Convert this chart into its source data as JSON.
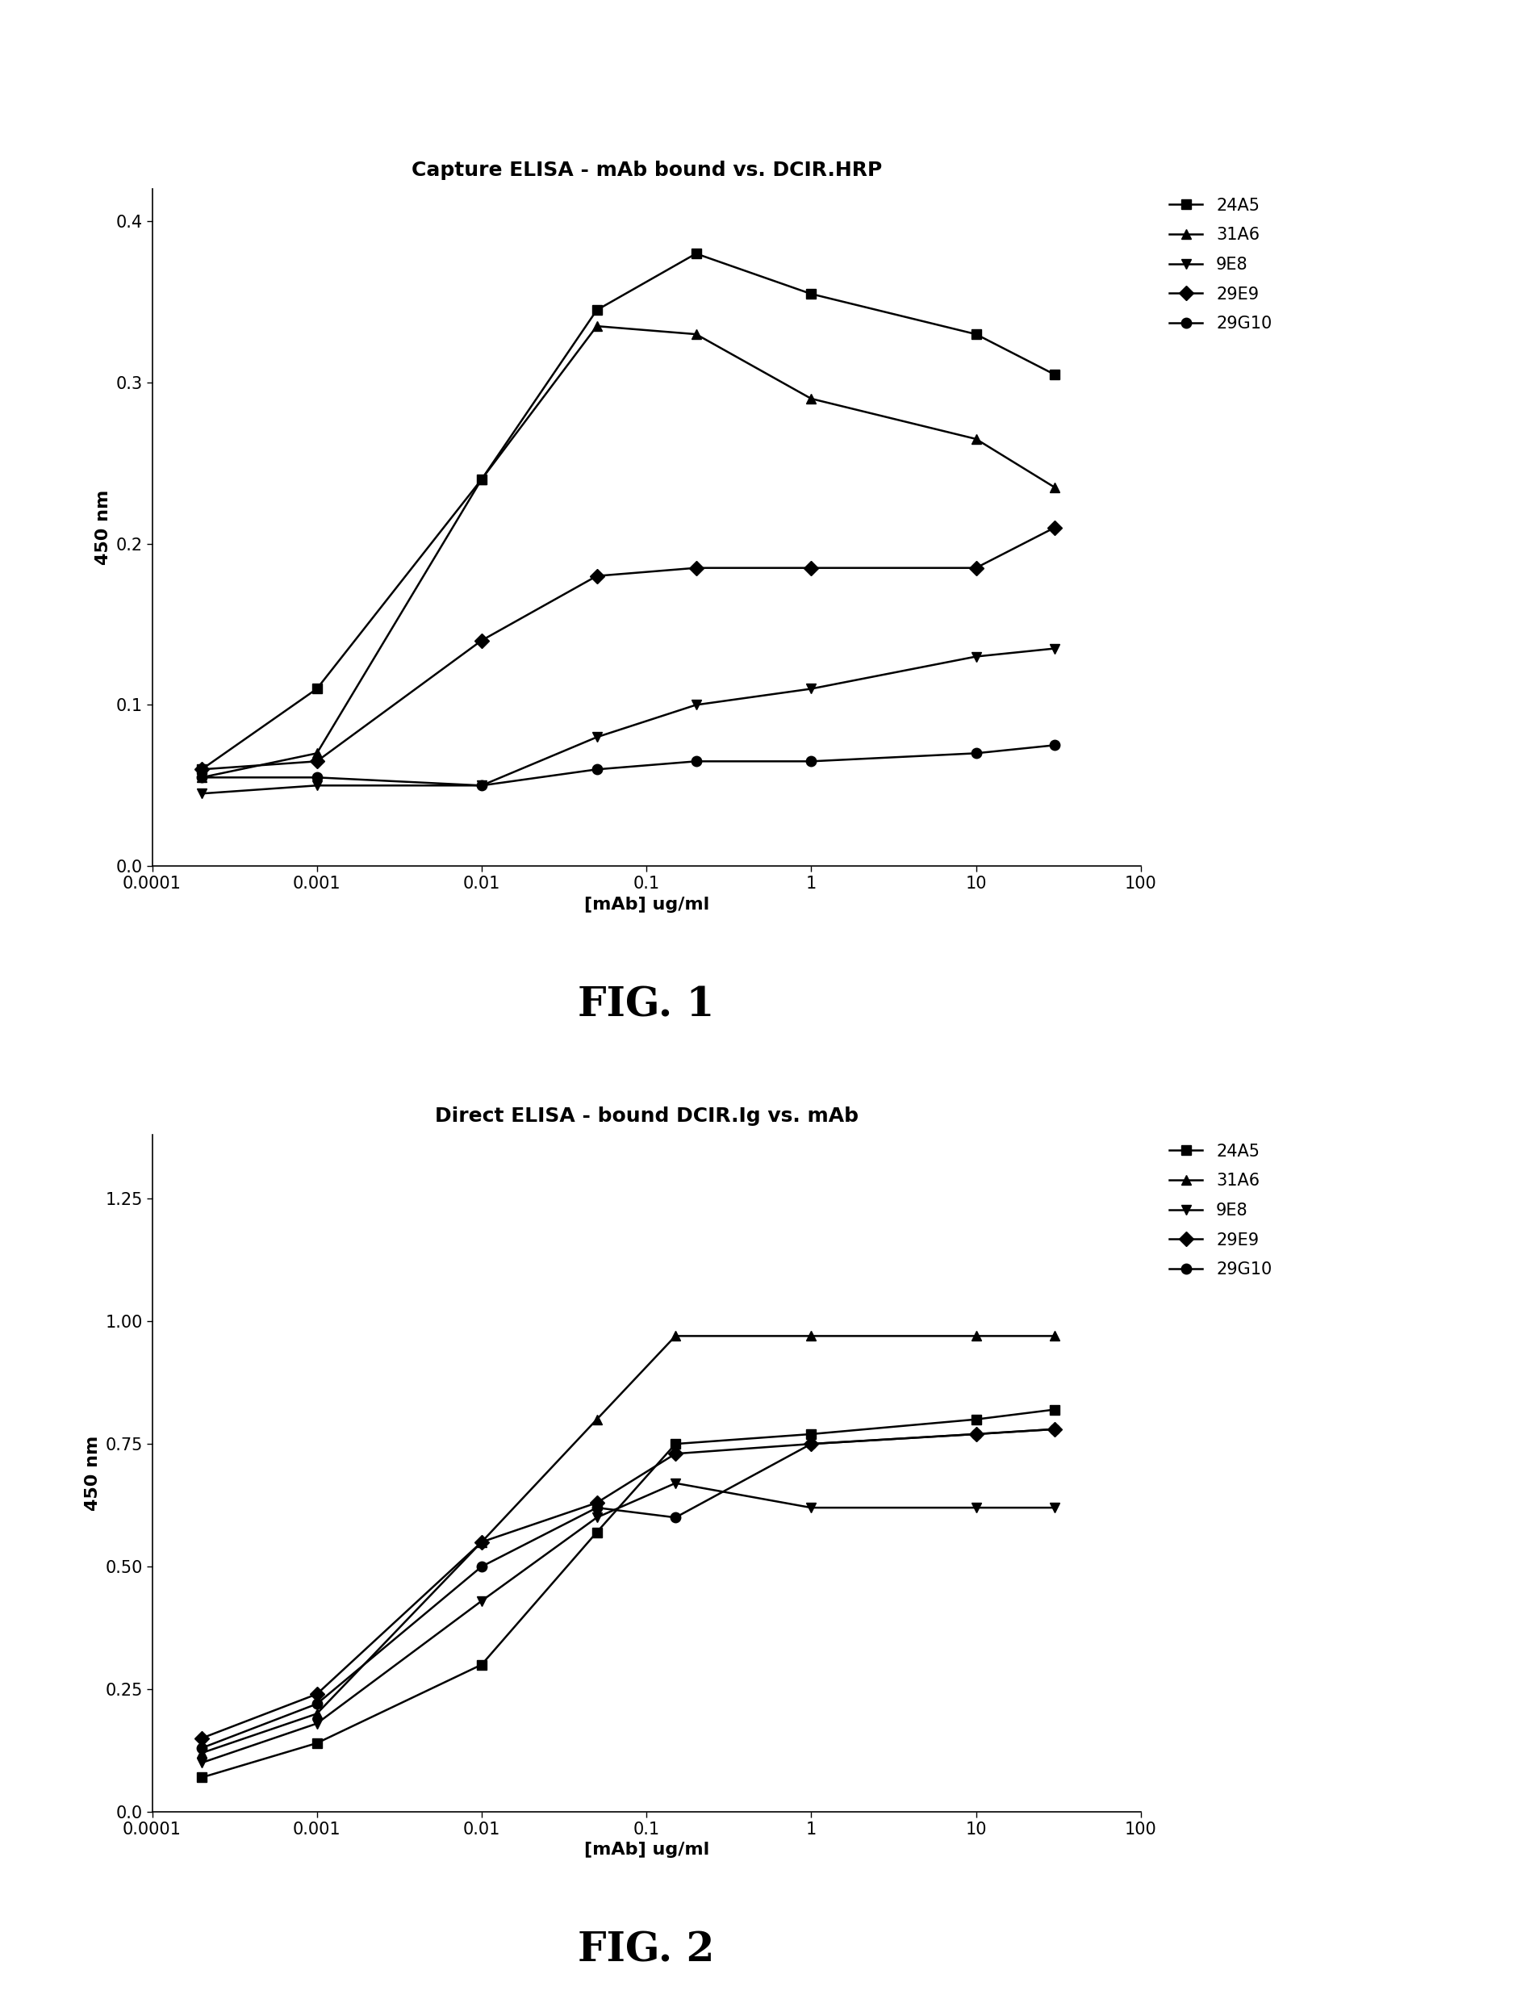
{
  "fig1": {
    "title": "Capture ELISA - mAb bound vs. DCIR.HRP",
    "xlabel": "[mAb] ug/ml",
    "ylabel": "450 nm",
    "ylim": [
      0.0,
      0.42
    ],
    "yticks": [
      0.0,
      0.1,
      0.2,
      0.3,
      0.4
    ],
    "xlim": [
      0.00015,
      70
    ],
    "series": {
      "24A5": {
        "x": [
          0.0002,
          0.001,
          0.01,
          0.05,
          0.2,
          1,
          10,
          30
        ],
        "y": [
          0.06,
          0.11,
          0.24,
          0.345,
          0.38,
          0.355,
          0.33,
          0.305
        ],
        "marker": "s"
      },
      "31A6": {
        "x": [
          0.0002,
          0.001,
          0.01,
          0.05,
          0.2,
          1,
          10,
          30
        ],
        "y": [
          0.055,
          0.07,
          0.24,
          0.335,
          0.33,
          0.29,
          0.265,
          0.235
        ],
        "marker": "^"
      },
      "9E8": {
        "x": [
          0.0002,
          0.001,
          0.01,
          0.05,
          0.2,
          1,
          10,
          30
        ],
        "y": [
          0.045,
          0.05,
          0.05,
          0.08,
          0.1,
          0.11,
          0.13,
          0.135
        ],
        "marker": "v"
      },
      "29E9": {
        "x": [
          0.0002,
          0.001,
          0.01,
          0.05,
          0.2,
          1,
          10,
          30
        ],
        "y": [
          0.06,
          0.065,
          0.14,
          0.18,
          0.185,
          0.185,
          0.185,
          0.21
        ],
        "marker": "D"
      },
      "29G10": {
        "x": [
          0.0002,
          0.001,
          0.01,
          0.05,
          0.2,
          1,
          10,
          30
        ],
        "y": [
          0.055,
          0.055,
          0.05,
          0.06,
          0.065,
          0.065,
          0.07,
          0.075
        ],
        "marker": "o"
      }
    },
    "fig_label": "FIG. 1"
  },
  "fig2": {
    "title": "Direct ELISA - bound DCIR.Ig vs. mAb",
    "xlabel": "[mAb] ug/ml",
    "ylabel": "450 nm",
    "ylim": [
      0.0,
      1.38
    ],
    "yticks": [
      0.0,
      0.25,
      0.5,
      0.75,
      1.0,
      1.25
    ],
    "xlim": [
      0.00015,
      70
    ],
    "series": {
      "24A5": {
        "x": [
          0.0002,
          0.001,
          0.01,
          0.05,
          0.15,
          1,
          10,
          30
        ],
        "y": [
          0.07,
          0.14,
          0.3,
          0.57,
          0.75,
          0.77,
          0.8,
          0.82
        ],
        "marker": "s"
      },
      "31A6": {
        "x": [
          0.0002,
          0.001,
          0.01,
          0.05,
          0.15,
          1,
          10,
          30
        ],
        "y": [
          0.12,
          0.2,
          0.55,
          0.8,
          0.97,
          0.97,
          0.97,
          0.97
        ],
        "marker": "^"
      },
      "9E8": {
        "x": [
          0.0002,
          0.001,
          0.01,
          0.05,
          0.15,
          1,
          10,
          30
        ],
        "y": [
          0.1,
          0.18,
          0.43,
          0.6,
          0.67,
          0.62,
          0.62,
          0.62
        ],
        "marker": "v"
      },
      "29E9": {
        "x": [
          0.0002,
          0.001,
          0.01,
          0.05,
          0.15,
          1,
          10,
          30
        ],
        "y": [
          0.15,
          0.24,
          0.55,
          0.63,
          0.73,
          0.75,
          0.77,
          0.78
        ],
        "marker": "D"
      },
      "29G10": {
        "x": [
          0.0002,
          0.001,
          0.01,
          0.05,
          0.15,
          1,
          10,
          30
        ],
        "y": [
          0.13,
          0.22,
          0.5,
          0.62,
          0.6,
          0.75,
          0.77,
          0.78
        ],
        "marker": "o"
      }
    },
    "fig_label": "FIG. 2"
  },
  "series_order": [
    "24A5",
    "31A6",
    "9E8",
    "29E9",
    "29G10"
  ],
  "color": "#000000",
  "linewidth": 1.8,
  "markersize": 9,
  "title_fontsize": 18,
  "label_fontsize": 16,
  "tick_fontsize": 15,
  "legend_fontsize": 15,
  "fig_label_fontsize": 36
}
